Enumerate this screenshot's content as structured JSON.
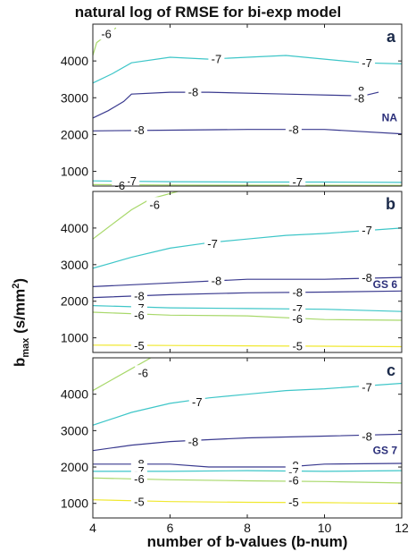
{
  "title": "natural log of RMSE for bi-exp model",
  "xlabel": "number of b-values (b-num)",
  "ylabel": {
    "main": "b",
    "sub": "max",
    "units": " (s/mm",
    "sup": "2",
    "close": ")"
  },
  "chart_data": {
    "type": "contour",
    "xlim": [
      4,
      12
    ],
    "ylim": [
      600,
      5000
    ],
    "xticks": [
      "4",
      "6",
      "8",
      "10",
      "12"
    ],
    "yticks": [
      "1000",
      "2000",
      "3000",
      "4000"
    ],
    "level_colors": {
      "-5": "#f0e830",
      "-6": "#a8d86a",
      "-7": "#3ec6c8",
      "-8": "#3a3a8f"
    },
    "panels": [
      {
        "letter": "a",
        "tag": "NA",
        "contours": [
          {
            "level": -6,
            "points": [
              [
                4,
                4150
              ],
              [
                4.1,
                4500
              ],
              [
                4.6,
                4900
              ]
            ],
            "labels": [
              {
                "text": "-6",
                "x": 4.35,
                "y": 4750
              }
            ]
          },
          {
            "level": -7,
            "points": [
              [
                4,
                3400
              ],
              [
                4.5,
                3650
              ],
              [
                5,
                3950
              ],
              [
                6,
                4100
              ],
              [
                7,
                4050
              ],
              [
                8,
                4100
              ],
              [
                9,
                4150
              ],
              [
                10,
                4050
              ],
              [
                11,
                3950
              ],
              [
                12,
                3920
              ]
            ],
            "labels": [
              {
                "text": "-7",
                "x": 7.2,
                "y": 4070
              },
              {
                "text": "-7",
                "x": 11.1,
                "y": 3950
              }
            ]
          },
          {
            "level": -8,
            "points": [
              [
                4,
                2450
              ],
              [
                4.4,
                2650
              ],
              [
                4.8,
                2900
              ],
              [
                5,
                3100
              ],
              [
                6,
                3150
              ],
              [
                7,
                3150
              ],
              [
                9,
                3100
              ],
              [
                11,
                3050
              ],
              [
                11.4,
                3150
              ]
            ],
            "labels": [
              {
                "text": "-8",
                "x": 6.6,
                "y": 3170
              },
              {
                "text": "-8",
                "x": 10.9,
                "y": 3200
              },
              {
                "text": "-8",
                "x": 10.9,
                "y": 3000
              }
            ]
          },
          {
            "level": -8,
            "points": [
              [
                4,
                2100
              ],
              [
                6,
                2120
              ],
              [
                8,
                2140
              ],
              [
                10,
                2140
              ],
              [
                12,
                2020
              ]
            ],
            "labels": [
              {
                "text": "-8",
                "x": 5.2,
                "y": 2130
              },
              {
                "text": "-8",
                "x": 9.2,
                "y": 2140
              }
            ]
          },
          {
            "level": -7,
            "points": [
              [
                4,
                740
              ],
              [
                6,
                720
              ],
              [
                8,
                710
              ],
              [
                10,
                710
              ],
              [
                12,
                700
              ]
            ],
            "labels": [
              {
                "text": "-7",
                "x": 5,
                "y": 740
              },
              {
                "text": "-7",
                "x": 9.3,
                "y": 720
              }
            ]
          },
          {
            "level": -6,
            "points": [
              [
                4,
                640
              ],
              [
                6,
                630
              ],
              [
                8,
                625
              ],
              [
                12,
                620
              ]
            ],
            "labels": [
              {
                "text": "-6",
                "x": 4.7,
                "y": 620
              }
            ]
          }
        ]
      },
      {
        "letter": "b",
        "tag": "GS 6",
        "contours": [
          {
            "level": -6,
            "points": [
              [
                4,
                3700
              ],
              [
                4.5,
                4100
              ],
              [
                5,
                4500
              ],
              [
                5.5,
                4800
              ],
              [
                6.2,
                5000
              ]
            ],
            "labels": [
              {
                "text": "-6",
                "x": 5.6,
                "y": 4650
              }
            ]
          },
          {
            "level": -7,
            "points": [
              [
                4,
                2900
              ],
              [
                5,
                3200
              ],
              [
                6,
                3450
              ],
              [
                7,
                3600
              ],
              [
                8,
                3700
              ],
              [
                9,
                3800
              ],
              [
                10,
                3850
              ],
              [
                12,
                4000
              ]
            ],
            "labels": [
              {
                "text": "-7",
                "x": 7.1,
                "y": 3580
              },
              {
                "text": "-7",
                "x": 11.1,
                "y": 3950
              }
            ]
          },
          {
            "level": -8,
            "points": [
              [
                4,
                2400
              ],
              [
                6,
                2500
              ],
              [
                8,
                2600
              ],
              [
                10,
                2600
              ],
              [
                12,
                2650
              ]
            ],
            "labels": [
              {
                "text": "-8",
                "x": 7.2,
                "y": 2570
              },
              {
                "text": "-8",
                "x": 11.1,
                "y": 2650
              }
            ]
          },
          {
            "level": -8,
            "points": [
              [
                4,
                2100
              ],
              [
                6,
                2180
              ],
              [
                8,
                2230
              ],
              [
                10,
                2250
              ],
              [
                12,
                2280
              ]
            ],
            "labels": [
              {
                "text": "-8",
                "x": 5.2,
                "y": 2150
              },
              {
                "text": "-8",
                "x": 9.3,
                "y": 2250
              }
            ]
          },
          {
            "level": -7,
            "points": [
              [
                4,
                1880
              ],
              [
                6,
                1820
              ],
              [
                8,
                1800
              ],
              [
                10,
                1780
              ],
              [
                12,
                1720
              ]
            ],
            "labels": [
              {
                "text": "-7",
                "x": 5.2,
                "y": 1820
              },
              {
                "text": "-7",
                "x": 9.3,
                "y": 1800
              }
            ]
          },
          {
            "level": -6,
            "points": [
              [
                4,
                1700
              ],
              [
                6,
                1620
              ],
              [
                8,
                1600
              ],
              [
                10,
                1500
              ],
              [
                12,
                1480
              ]
            ],
            "labels": [
              {
                "text": "-6",
                "x": 5.2,
                "y": 1630
              },
              {
                "text": "-6",
                "x": 9.3,
                "y": 1530
              }
            ]
          },
          {
            "level": -5,
            "points": [
              [
                4,
                800
              ],
              [
                6,
                790
              ],
              [
                8,
                780
              ],
              [
                10,
                770
              ],
              [
                12,
                760
              ]
            ],
            "labels": [
              {
                "text": "-5",
                "x": 5.2,
                "y": 800
              },
              {
                "text": "-5",
                "x": 9.3,
                "y": 780
              }
            ]
          }
        ]
      },
      {
        "letter": "c",
        "tag": "GS 7",
        "contours": [
          {
            "level": -6,
            "points": [
              [
                4,
                4100
              ],
              [
                4.5,
                4400
              ],
              [
                5,
                4700
              ],
              [
                5.5,
                5000
              ]
            ],
            "labels": [
              {
                "text": "-6",
                "x": 5.3,
                "y": 4600
              }
            ]
          },
          {
            "level": -7,
            "points": [
              [
                4,
                3150
              ],
              [
                5,
                3500
              ],
              [
                6,
                3750
              ],
              [
                7,
                3900
              ],
              [
                8,
                4000
              ],
              [
                9,
                4100
              ],
              [
                10,
                4150
              ],
              [
                12,
                4300
              ]
            ],
            "labels": [
              {
                "text": "-7",
                "x": 6.7,
                "y": 3800
              },
              {
                "text": "-7",
                "x": 11.1,
                "y": 4200
              }
            ]
          },
          {
            "level": -8,
            "points": [
              [
                4,
                2450
              ],
              [
                5,
                2600
              ],
              [
                6,
                2700
              ],
              [
                7,
                2750
              ],
              [
                8,
                2800
              ],
              [
                10,
                2850
              ],
              [
                12,
                2900
              ]
            ],
            "labels": [
              {
                "text": "-8",
                "x": 6.6,
                "y": 2700
              },
              {
                "text": "-8",
                "x": 11.1,
                "y": 2850
              }
            ]
          },
          {
            "level": -8,
            "points": [
              [
                4,
                2080
              ],
              [
                6,
                2080
              ],
              [
                7,
                2000
              ],
              [
                9,
                2000
              ],
              [
                10,
                2080
              ],
              [
                12,
                2100
              ]
            ],
            "labels": [
              {
                "text": "-8",
                "x": 5.2,
                "y": 2100
              },
              {
                "text": "-8",
                "x": 9.2,
                "y": 2050
              }
            ]
          },
          {
            "level": -7,
            "points": [
              [
                4,
                1880
              ],
              [
                6,
                1880
              ],
              [
                8,
                1900
              ],
              [
                10,
                1880
              ],
              [
                12,
                1900
              ]
            ],
            "labels": [
              {
                "text": "-7",
                "x": 5.2,
                "y": 1900
              },
              {
                "text": "-7",
                "x": 9.2,
                "y": 1880
              }
            ]
          },
          {
            "level": -6,
            "points": [
              [
                4,
                1700
              ],
              [
                6,
                1650
              ],
              [
                8,
                1620
              ],
              [
                10,
                1600
              ],
              [
                12,
                1560
              ]
            ],
            "labels": [
              {
                "text": "-6",
                "x": 5.2,
                "y": 1680
              },
              {
                "text": "-6",
                "x": 9.2,
                "y": 1640
              }
            ]
          },
          {
            "level": -5,
            "points": [
              [
                4,
                1100
              ],
              [
                6,
                1050
              ],
              [
                8,
                1030
              ],
              [
                10,
                1020
              ],
              [
                12,
                1000
              ]
            ],
            "labels": [
              {
                "text": "-5",
                "x": 5.2,
                "y": 1060
              },
              {
                "text": "-5",
                "x": 9.2,
                "y": 1040
              }
            ]
          }
        ]
      }
    ]
  }
}
